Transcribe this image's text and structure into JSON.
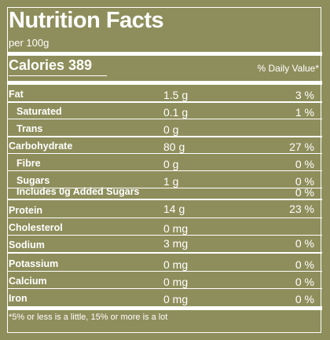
{
  "panel": {
    "title": "Nutrition Facts",
    "serving": "per 100g",
    "calories_label": "Calories 389",
    "daily_value_header": "% Daily Value*",
    "rows": [
      {
        "name": "Fat",
        "amount": "1.5 g",
        "pct": "3 %"
      },
      {
        "name": "Saturated",
        "amount": "0.1 g",
        "pct": "1 %"
      },
      {
        "name": "Trans",
        "amount": "0 g",
        "pct": ""
      },
      {
        "name": "Carbohydrate",
        "amount": "80 g",
        "pct": "27 %"
      },
      {
        "name": "Fibre",
        "amount": "0 g",
        "pct": "0 %"
      },
      {
        "name": "Sugars",
        "amount": "1 g",
        "pct": "0 %"
      },
      {
        "name": "Includes 0g Added Sugars",
        "amount": "",
        "pct": "0 %"
      },
      {
        "name": "Protein",
        "amount": "14 g",
        "pct": "23 %"
      },
      {
        "name": "Cholesterol",
        "amount": "0 mg",
        "pct": ""
      },
      {
        "name": "Sodium",
        "amount": "3 mg",
        "pct": "0 %"
      },
      {
        "name": "Potassium",
        "amount": "0 mg",
        "pct": "0 %"
      },
      {
        "name": "Calcium",
        "amount": "0 mg",
        "pct": "0 %"
      },
      {
        "name": "Iron",
        "amount": "0 mg",
        "pct": "0 %"
      }
    ],
    "footnote": "*5% or less is a little, 15% or more is a lot"
  },
  "colors": {
    "background": "#8e8e5c",
    "text": "#ffffff"
  }
}
